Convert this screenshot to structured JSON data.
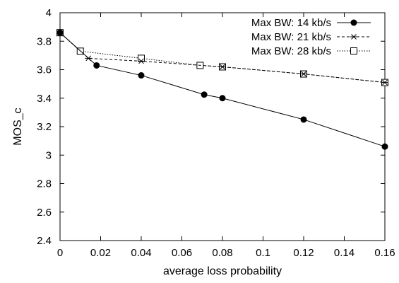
{
  "chart_data": {
    "type": "line",
    "title": "",
    "xlabel": "average loss probability",
    "ylabel": "MOS_c",
    "xlim": [
      0,
      0.16
    ],
    "ylim": [
      2.4,
      4
    ],
    "xticks": [
      0,
      0.02,
      0.04,
      0.06,
      0.08,
      0.1,
      0.12,
      0.14,
      0.16
    ],
    "xtick_labels": [
      "0",
      "0.02",
      "0.04",
      "0.06",
      "0.08",
      "0.1",
      "0.12",
      "0.14",
      "0.16"
    ],
    "yticks": [
      2.4,
      2.6,
      2.8,
      3,
      3.2,
      3.4,
      3.6,
      3.8,
      4
    ],
    "ytick_labels": [
      "2.4",
      "2.6",
      "2.8",
      "3",
      "3.2",
      "3.4",
      "3.6",
      "3.8",
      "4"
    ],
    "grid": false,
    "legend_position": "top-right",
    "series": [
      {
        "name": "Max BW: 14 kb/s",
        "line_style": "solid",
        "marker": "filled-circle",
        "x": [
          0,
          0.018,
          0.04,
          0.071,
          0.08,
          0.12,
          0.16
        ],
        "y": [
          3.86,
          3.63,
          3.56,
          3.425,
          3.4,
          3.25,
          3.06
        ]
      },
      {
        "name": "Max BW: 21 kb/s",
        "line_style": "dashed",
        "marker": "asterisk",
        "x": [
          0,
          0.014,
          0.04,
          0.08,
          0.12,
          0.16
        ],
        "y": [
          3.86,
          3.68,
          3.66,
          3.62,
          3.57,
          3.51
        ]
      },
      {
        "name": "Max BW: 28 kb/s",
        "line_style": "dotted",
        "marker": "open-square",
        "x": [
          0,
          0.01,
          0.04,
          0.069,
          0.08,
          0.12,
          0.16
        ],
        "y": [
          3.86,
          3.73,
          3.68,
          3.63,
          3.62,
          3.57,
          3.51
        ]
      }
    ]
  }
}
